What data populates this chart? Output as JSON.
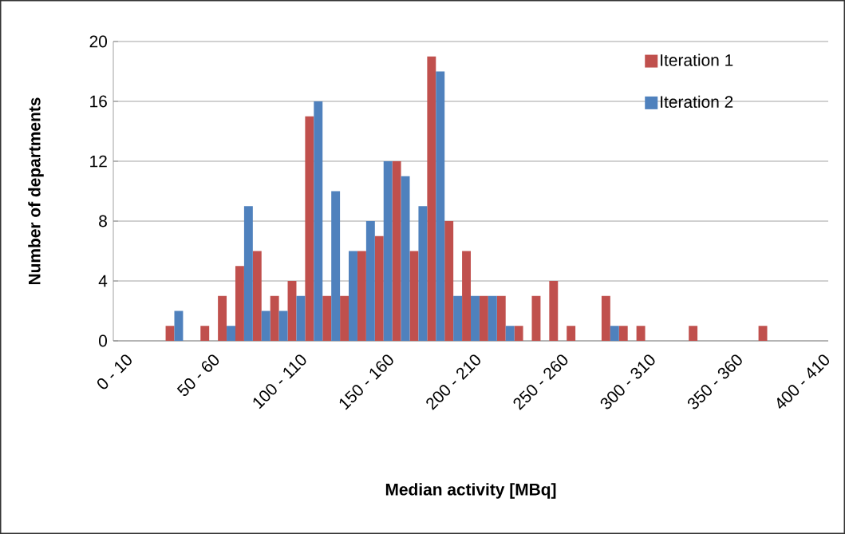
{
  "chart_data": {
    "type": "bar",
    "xlabel": "Median activity [MBq]",
    "ylabel": "Number of departments",
    "categories": [
      "0 - 10",
      null,
      null,
      null,
      null,
      "50 - 60",
      null,
      null,
      null,
      null,
      "100 - 110",
      null,
      null,
      null,
      null,
      "150 - 160",
      null,
      null,
      null,
      null,
      "200 - 210",
      null,
      null,
      null,
      null,
      "250 - 260",
      null,
      null,
      null,
      null,
      "300 - 310",
      null,
      null,
      null,
      null,
      "350 - 360",
      null,
      null,
      null,
      null,
      "400 - 410"
    ],
    "series": [
      {
        "name": "Iteration 1",
        "color": "#c0504d",
        "values": [
          0,
          0,
          0,
          1,
          0,
          1,
          3,
          5,
          6,
          3,
          4,
          15,
          3,
          3,
          6,
          7,
          12,
          6,
          19,
          8,
          6,
          3,
          3,
          1,
          3,
          4,
          1,
          0,
          3,
          1,
          1,
          0,
          0,
          1,
          0,
          0,
          0,
          1,
          0,
          0,
          0
        ]
      },
      {
        "name": "Iteration 2",
        "color": "#4f81bd",
        "values": [
          0,
          0,
          0,
          2,
          0,
          0,
          1,
          9,
          2,
          2,
          3,
          16,
          10,
          6,
          8,
          12,
          11,
          9,
          18,
          3,
          3,
          3,
          1,
          0,
          0,
          0,
          0,
          0,
          1,
          0,
          0,
          0,
          0,
          0,
          0,
          0,
          0,
          0,
          0,
          0,
          0
        ]
      }
    ],
    "ylim": [
      0,
      20
    ],
    "yticks": [
      0,
      4,
      8,
      12,
      16,
      20
    ],
    "grid": "y",
    "legend": "top right"
  }
}
